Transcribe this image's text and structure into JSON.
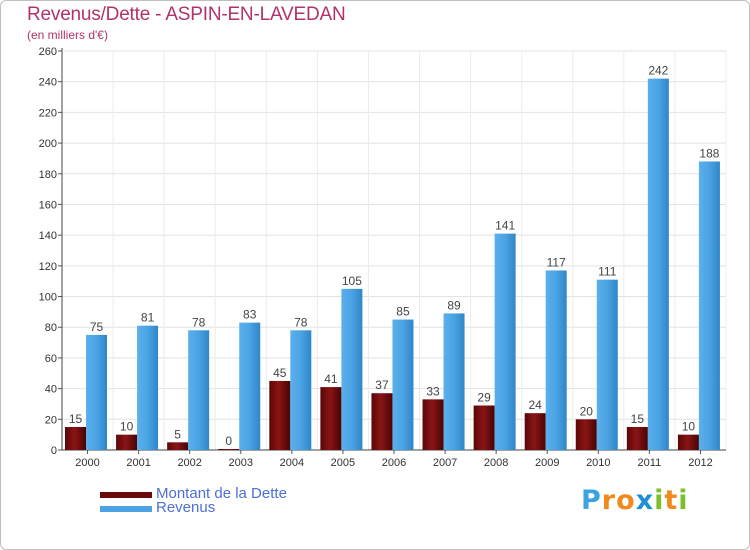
{
  "title": "Revenus/Dette - ASPIN-EN-LAVEDAN",
  "subtitle": "(en milliers d'€)",
  "logo": {
    "text": "Proxiti",
    "letters": [
      {
        "char": "P",
        "color": "#3aa3e0"
      },
      {
        "char": "r",
        "color": "#f08a1c"
      },
      {
        "char": "o",
        "color": "#f08a1c"
      },
      {
        "char": "x",
        "color": "#1d8fd6"
      },
      {
        "char": "i",
        "color": "#7bbf2c"
      },
      {
        "char": "t",
        "color": "#f08a1c"
      },
      {
        "char": "i",
        "color": "#7bbf2c"
      }
    ]
  },
  "chart_data": {
    "type": "bar",
    "title": "Revenus/Dette - ASPIN-EN-LAVEDAN",
    "subtitle": "(en milliers d'€)",
    "categories": [
      "2000",
      "2001",
      "2002",
      "2003",
      "2004",
      "2005",
      "2006",
      "2007",
      "2008",
      "2009",
      "2010",
      "2011",
      "2012"
    ],
    "series": [
      {
        "name": "Montant de la Dette",
        "color": "#7a0d0d",
        "values": [
          15,
          10,
          5,
          0,
          45,
          41,
          37,
          33,
          29,
          24,
          20,
          15,
          10
        ]
      },
      {
        "name": "Revenus",
        "color": "#4aa3e3",
        "values": [
          75,
          81,
          78,
          83,
          78,
          105,
          85,
          89,
          141,
          117,
          111,
          242,
          188
        ]
      }
    ],
    "ylim": [
      0,
      260
    ],
    "yticks": [
      0,
      20,
      40,
      60,
      80,
      100,
      120,
      140,
      160,
      180,
      200,
      220,
      240,
      260
    ],
    "grid": true,
    "legend": "bottom-left",
    "data_labels": true
  }
}
